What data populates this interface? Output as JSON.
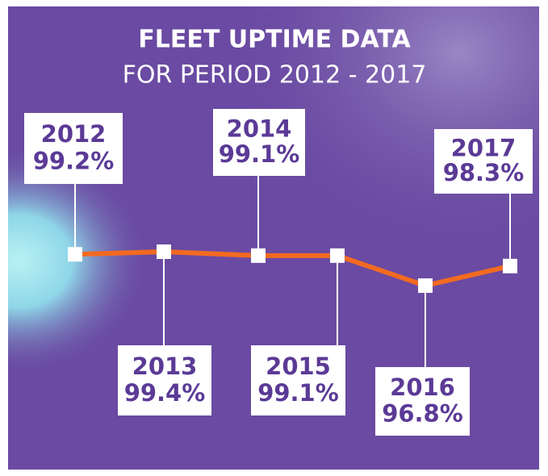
{
  "chart_data": {
    "type": "line",
    "title": "FLEET UPTIME DATA",
    "subtitle": "FOR PERIOD 2012 - 2017",
    "categories": [
      "2012",
      "2013",
      "2014",
      "2015",
      "2016",
      "2017"
    ],
    "values": [
      99.2,
      99.4,
      99.1,
      99.1,
      96.8,
      98.3
    ],
    "value_labels": [
      "99.2%",
      "99.4%",
      "99.1%",
      "99.1%",
      "96.8%",
      "98.3%"
    ],
    "color": "#f26a21"
  }
}
